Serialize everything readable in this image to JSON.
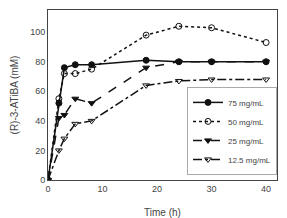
{
  "chart_data": {
    "type": "line",
    "xlabel": "Time (h)",
    "ylabel": "(R)-3-ATiBA (mM)",
    "x": [
      0,
      2,
      3,
      5,
      8,
      18,
      24,
      30,
      40
    ],
    "series": [
      {
        "name": "75 mg/mL",
        "color": "#111111",
        "line_style": "solid",
        "marker": "circle",
        "values": [
          0,
          52,
          76,
          78,
          78,
          81,
          80,
          80,
          80
        ]
      },
      {
        "name": "50 mg/mL",
        "color": "#111111",
        "line_style": "dot",
        "marker": "circle-open",
        "values": [
          0,
          55,
          72,
          72,
          75,
          98,
          104,
          103,
          93
        ]
      },
      {
        "name": "25 mg/mL",
        "color": "#111111",
        "line_style": "dash",
        "marker": "triangle-down",
        "values": [
          0,
          42,
          44,
          55,
          52,
          76,
          80,
          80,
          80
        ]
      },
      {
        "name": "12.5 mg/mL",
        "color": "#111111",
        "line_style": "dashdot",
        "marker": "triangle-down-open",
        "values": [
          0,
          20,
          28,
          38,
          40,
          64,
          67,
          68,
          68
        ]
      }
    ],
    "xlim": [
      0,
      42
    ],
    "ylim": [
      0,
      115
    ],
    "xticks": [
      0,
      10,
      20,
      30,
      40
    ],
    "yticks": [
      0,
      20,
      40,
      60,
      80,
      100
    ],
    "grid": false,
    "legend": "lower right"
  }
}
